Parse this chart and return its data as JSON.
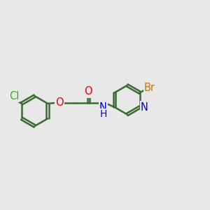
{
  "background_color": "#e8e8e8",
  "bond_color": "#3a6b32",
  "bond_width": 1.8,
  "atom_colors": {
    "Cl": "#22bb00",
    "O": "#ee0000",
    "N": "#0000ee",
    "Br": "#cc7700"
  },
  "bg": "#e8e8e8",
  "figsize": [
    3.0,
    3.0
  ],
  "dpi": 100
}
